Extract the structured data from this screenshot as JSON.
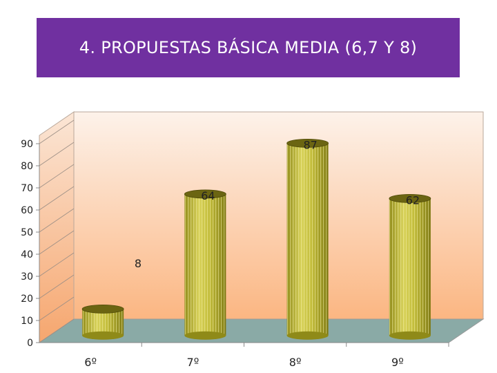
{
  "chart_data": {
    "type": "bar",
    "title": "4. PROPUESTAS  BÁSICA MEDIA  (6,7 Y 8)",
    "categories": [
      "6º",
      "7º",
      "8º",
      "9º"
    ],
    "series": [
      {
        "values": [
          12,
          64,
          87,
          62
        ]
      }
    ],
    "data_labels": [
      "",
      "64",
      "87",
      "62"
    ],
    "annotations": [
      {
        "text": "8"
      }
    ],
    "y_ticks": [
      0,
      10,
      20,
      30,
      40,
      50,
      60,
      70,
      80,
      90
    ],
    "ylim": [
      0,
      90
    ],
    "xlabel": "",
    "ylabel": "",
    "grid": false,
    "legend": "none",
    "style": "3d-cylinder"
  },
  "colors": {
    "title_bg": "#7030a0",
    "title_text": "#ffffff",
    "bar_body": "#b5b030",
    "bar_top": "#6b6512",
    "bar_stripe": "#e6e08a",
    "floor": "#8aaaa6",
    "wall_top": "#fdeee2",
    "wall_bottom": "#fbb884"
  }
}
